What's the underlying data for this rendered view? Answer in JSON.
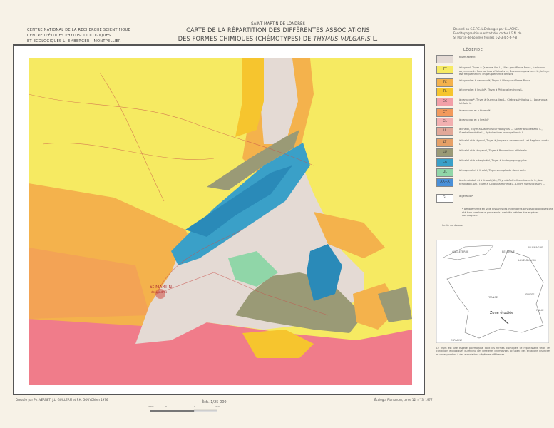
{
  "header": {
    "institution": [
      "CENTRE NATIONAL DE LA RECHERCHE SCIENTIFIQUE",
      "CENTRE D'ÉTUDES PHYTOSOCIOLOGIQUES",
      "ET ÉCOLOGIQUES L. EMBERGER - MONTPELLIER"
    ],
    "place": "SAINT MARTIN-DE-LONDRES",
    "title_line1": "CARTE DE LA RÉPARTITION DES DIFFÉRENTES ASSOCIATIONS",
    "title_line2_prefix": "DES FORMES CHIMIQUES (CHÉMOTYPES) DE ",
    "title_species": "THYMUS VULGARIS",
    "title_suffix": " L.",
    "credit": [
      "Dessiné au C.E.P.E. L.Emberger par G.LAGNEL",
      "Fond topographique extrait des cartes I.G.N. de",
      "St Martin-de-Londres feuilles 1-2-3-4-5-6-7-8"
    ]
  },
  "legend": {
    "title": "LÉGENDE",
    "items": [
      {
        "code": "",
        "color": "#e4dad4",
        "text": "thym absent"
      },
      {
        "code": "TT",
        "color": "#f6ea62",
        "text": "à thymol, Thym à Quercus ilex L., Ulex parviflorus Pourr., Juniperus oxycedrus L., Rosmarinus officinalis L., Buxus sempervirens L.; le thym est fréquemment en peuplements denses"
      },
      {
        "code": "TC",
        "color": "#f4b24c",
        "text": "à thymol et à carvacrol*, Thym à Ulex parviflorus Pourr."
      },
      {
        "code": "TL",
        "color": "#f6c52e",
        "text": "à thymol et à linalol*, Thym à Pistacia lentiscus L."
      },
      {
        "code": "CC",
        "color": "#f2a0a8",
        "text": "à carvacrol*, Thym à Quercus ilex L., Cistus salviifolius L., Lavandula latifolia L."
      },
      {
        "code": "CT",
        "color": "#f29a5c",
        "text": "à carvacrol et à thymol*"
      },
      {
        "code": "CL",
        "color": "#f2b0b0",
        "text": "à carvacrol et à linalol*"
      },
      {
        "code": "LL",
        "color": "#e2a898",
        "text": "à linalol, Thym à Dianthus caryophyllus L., Koeleria vallesiana L., Staehelina dubia L., Aphyllanthes monspeliensis L."
      },
      {
        "code": "LT",
        "color": "#e6a066",
        "text": "à linalol et à thymol, Thym à Juniperus oxycedrus L. et Aegilops ovata L."
      },
      {
        "code": "LU",
        "color": "#9a9a76",
        "text": "à linalol et à thuyanol, Thym à Rosmarinus officinalis L."
      },
      {
        "code": "LA",
        "color": "#3aa0c8",
        "text": "à linalol et à α-terpinéol, Thym à Andropogon gryllus L."
      },
      {
        "code": "UL",
        "color": "#90d6a8",
        "text": "à thuyanol et à linalol, Thym sans plante dominante"
      },
      {
        "code": "AA+A",
        "color": "#4a90d8",
        "text": "à α-terpinéol, et à linalol (AL), Thym à Anthyllis vulneraria L.; à α-terpinéol (AA), Thym à Coronilla minima L., Linum suffruticosum L."
      },
      {
        "code": "GL",
        "color": "#ffffff",
        "text": "à géraniol*"
      }
    ],
    "footnote": "* peuplements en voie disparus les inventaires phytosociologiques ont été trop nombreux pour avoir une idée précise des espèces compagnes.",
    "boundary_label": "limite cantonale"
  },
  "inset": {
    "labels": [
      "ANGLETERRE",
      "BELGIQUE",
      "ALLEMAGNE",
      "LUXEMBOURG",
      "FRANCE",
      "SUISSE",
      "ITALIE",
      "ESPAGNE"
    ],
    "zone_label": "Zone étudiée"
  },
  "map": {
    "town": "St MARTIN",
    "town_sub": "de-Londres",
    "place_top": "St MARTIN-DE-LONDRES"
  },
  "footer": {
    "drawn_by": "Dressée par Ph. VERNET, J.L. GUILLERM et P.H. GOUYON en 1976",
    "scale": "Éch. 1/25 000",
    "scale_ticks": [
      "500m",
      "0",
      "1",
      "2km"
    ],
    "publication": "Écologia Plantarum, tome 12, n° 3, 1977",
    "description": "Le thym est une espèce polymorphe dont les formes chimiques se répartissent selon les conditions écologiques du milieu. Les différents chémotypes occupent des situations distinctes et correspondent à des associations végétales différentes."
  }
}
